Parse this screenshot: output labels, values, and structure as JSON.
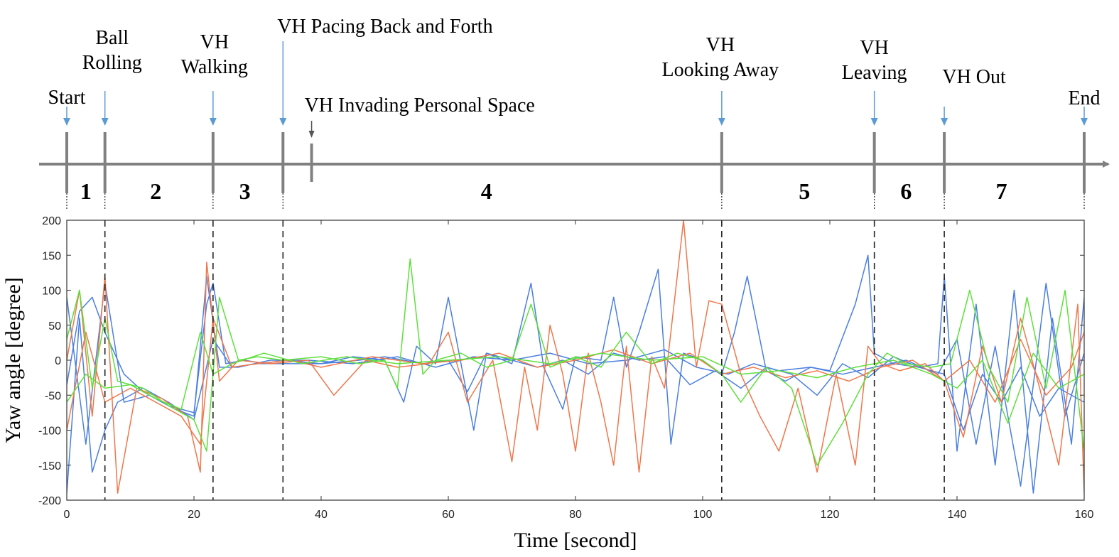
{
  "chart_data": {
    "type": "line",
    "xlabel": "Time [second]",
    "ylabel": "Yaw angle [degree]",
    "xlim": [
      0,
      160
    ],
    "ylim": [
      -200,
      200
    ],
    "xticks": [
      "0",
      "20",
      "40",
      "60",
      "80",
      "100",
      "120",
      "140",
      "160"
    ],
    "yticks": [
      "200",
      "150",
      "100",
      "50",
      "0",
      "-50",
      "-100",
      "-150",
      "-200"
    ],
    "grid": false,
    "colors": {
      "blue": "#4a7fe0",
      "green": "#5ee03a",
      "red": "#f0764a",
      "timeline": "#808080",
      "arrow": "#5b9bd5"
    },
    "dashed_lines_x": [
      6,
      23,
      34,
      103,
      127,
      138
    ],
    "events": [
      {
        "t": 0,
        "lines": [
          "Start"
        ]
      },
      {
        "t": 6,
        "lines": [
          "Ball",
          "Rolling"
        ]
      },
      {
        "t": 23,
        "lines": [
          "VH",
          "Walking"
        ]
      },
      {
        "t": 34,
        "lines": [
          "VH Pacing Back and Forth"
        ]
      },
      {
        "t": 38.5,
        "lines": [
          "VH Invading Personal Space"
        ]
      },
      {
        "t": 103,
        "lines": [
          "VH",
          "Looking Away"
        ]
      },
      {
        "t": 127,
        "lines": [
          "VH",
          "Leaving"
        ]
      },
      {
        "t": 138,
        "lines": [
          "VH Out"
        ]
      },
      {
        "t": 160,
        "lines": [
          "End"
        ]
      }
    ],
    "segments": [
      {
        "label": "1",
        "t": 3
      },
      {
        "label": "2",
        "t": 14
      },
      {
        "label": "3",
        "t": 28
      },
      {
        "label": "4",
        "t": 66
      },
      {
        "label": "5",
        "t": 116
      },
      {
        "label": "6",
        "t": 132
      },
      {
        "label": "7",
        "t": 147
      }
    ],
    "series": [
      {
        "color": "blue",
        "x": [
          0,
          2,
          4,
          6,
          9,
          12,
          16,
          20,
          22,
          23,
          25,
          28,
          31,
          34,
          40,
          45,
          50,
          53,
          55,
          58,
          60,
          62,
          64,
          66,
          70,
          73,
          75,
          78,
          80,
          84,
          86,
          88,
          90,
          93,
          95,
          97,
          100,
          103,
          105,
          107,
          110,
          113,
          117,
          120,
          124,
          126,
          127,
          130,
          134,
          137,
          138,
          140,
          143,
          146,
          149,
          152,
          155,
          158,
          160
        ],
        "y": [
          -35,
          70,
          90,
          40,
          -20,
          -45,
          -65,
          -75,
          80,
          110,
          -5,
          0,
          -5,
          0,
          -5,
          5,
          0,
          -60,
          20,
          -5,
          90,
          -5,
          -100,
          10,
          -5,
          110,
          -10,
          -70,
          5,
          0,
          90,
          -10,
          40,
          130,
          -120,
          10,
          0,
          -20,
          40,
          120,
          -15,
          -30,
          -10,
          -15,
          80,
          150,
          10,
          -5,
          -10,
          -5,
          120,
          -130,
          80,
          -150,
          100,
          -190,
          60,
          -120,
          90
        ]
      },
      {
        "color": "blue",
        "x": [
          0,
          2,
          4,
          6,
          8,
          12,
          16,
          20,
          23,
          26,
          30,
          34,
          40,
          46,
          50,
          56,
          60,
          63,
          66,
          70,
          74,
          78,
          82,
          86,
          90,
          94,
          98,
          102,
          106,
          110,
          114,
          118,
          122,
          126,
          130,
          134,
          138,
          141,
          144,
          147,
          150,
          153,
          156,
          160
        ],
        "y": [
          -190,
          60,
          -160,
          -100,
          -60,
          -40,
          -60,
          -85,
          30,
          -10,
          -5,
          -5,
          -5,
          0,
          5,
          -5,
          0,
          -45,
          10,
          0,
          -10,
          0,
          -20,
          10,
          0,
          5,
          -35,
          -15,
          -40,
          -10,
          -20,
          -50,
          -5,
          -25,
          5,
          -10,
          -20,
          -100,
          -20,
          -60,
          -10,
          -80,
          -40,
          -60
        ]
      },
      {
        "color": "blue",
        "x": [
          0,
          3,
          6,
          9,
          13,
          17,
          20,
          22,
          24,
          27,
          32,
          38,
          45,
          52,
          58,
          64,
          70,
          76,
          82,
          88,
          94,
          99,
          104,
          108,
          112,
          117,
          122,
          127,
          132,
          137,
          140,
          143,
          146,
          150,
          154,
          157,
          160
        ],
        "y": [
          90,
          -120,
          110,
          -60,
          -50,
          -70,
          -80,
          120,
          -10,
          -10,
          0,
          0,
          -5,
          5,
          -10,
          5,
          0,
          10,
          -5,
          0,
          15,
          -10,
          -20,
          -5,
          -15,
          -10,
          -20,
          -10,
          0,
          -20,
          30,
          -120,
          20,
          -180,
          110,
          -80,
          10
        ]
      },
      {
        "color": "red",
        "x": [
          0,
          2,
          4,
          6,
          8,
          11,
          15,
          19,
          21,
          22,
          24,
          27,
          32,
          38,
          42,
          47,
          52,
          57,
          60,
          63,
          67,
          70,
          72,
          74,
          76,
          78,
          80,
          82,
          84,
          86,
          88,
          90,
          92,
          94,
          96,
          97,
          99,
          101,
          103,
          106,
          109,
          112,
          115,
          118,
          121,
          124,
          126,
          128,
          131,
          135,
          138,
          141,
          144,
          147,
          150,
          153,
          156,
          159,
          160
        ],
        "y": [
          0,
          100,
          -80,
          120,
          -190,
          -40,
          -55,
          -80,
          -160,
          140,
          -30,
          0,
          -5,
          0,
          -50,
          0,
          -10,
          -5,
          40,
          -60,
          0,
          -145,
          -10,
          -100,
          50,
          -20,
          -130,
          10,
          -60,
          -150,
          20,
          -160,
          5,
          -40,
          120,
          200,
          -10,
          85,
          80,
          -20,
          -80,
          -130,
          -40,
          -160,
          -20,
          -150,
          20,
          -5,
          -15,
          -5,
          -30,
          -110,
          20,
          -60,
          60,
          -40,
          -150,
          80,
          -190
        ]
      },
      {
        "color": "red",
        "x": [
          0,
          3,
          6,
          10,
          14,
          18,
          21,
          23,
          26,
          30,
          35,
          40,
          48,
          56,
          62,
          68,
          74,
          80,
          86,
          92,
          98,
          103,
          108,
          113,
          118,
          123,
          128,
          133,
          138,
          142,
          146,
          150,
          154,
          158,
          160
        ],
        "y": [
          -100,
          40,
          -60,
          -40,
          -60,
          -80,
          -120,
          60,
          -10,
          -5,
          0,
          -10,
          5,
          -5,
          0,
          10,
          -10,
          0,
          15,
          -5,
          10,
          -20,
          -10,
          -25,
          -15,
          -30,
          -10,
          0,
          -30,
          0,
          -60,
          30,
          -50,
          -10,
          40
        ]
      },
      {
        "color": "green",
        "x": [
          0,
          2,
          4,
          6,
          8,
          12,
          16,
          20,
          22,
          24,
          27,
          30,
          34,
          40,
          46,
          50,
          52,
          54,
          56,
          58,
          62,
          66,
          70,
          73,
          76,
          80,
          84,
          88,
          92,
          96,
          100,
          103,
          106,
          110,
          114,
          118,
          122,
          126,
          129,
          132,
          136,
          139,
          142,
          145,
          148,
          151,
          154,
          157,
          160
        ],
        "y": [
          30,
          100,
          -40,
          60,
          -30,
          -40,
          -65,
          -85,
          -130,
          90,
          0,
          5,
          0,
          5,
          -5,
          0,
          -40,
          145,
          -20,
          0,
          10,
          -10,
          0,
          80,
          -10,
          5,
          -10,
          40,
          -5,
          10,
          0,
          -20,
          -60,
          -10,
          -40,
          -150,
          -90,
          -20,
          10,
          -5,
          -10,
          -5,
          100,
          -10,
          -60,
          90,
          -40,
          100,
          -130
        ]
      },
      {
        "color": "green",
        "x": [
          0,
          3,
          6,
          10,
          14,
          18,
          21,
          23,
          26,
          31,
          37,
          44,
          52,
          60,
          68,
          76,
          84,
          92,
          100,
          106,
          112,
          118,
          124,
          130,
          136,
          140,
          144,
          148,
          152,
          156,
          160
        ],
        "y": [
          -60,
          -20,
          -40,
          -35,
          -55,
          -70,
          40,
          -20,
          -5,
          10,
          -5,
          5,
          -5,
          0,
          5,
          -5,
          10,
          0,
          5,
          -20,
          -15,
          -25,
          -10,
          0,
          -20,
          -40,
          0,
          -90,
          10,
          -40,
          -20
        ]
      }
    ]
  }
}
